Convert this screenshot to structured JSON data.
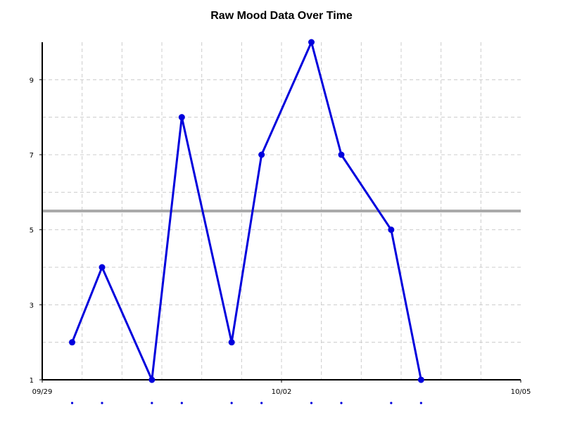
{
  "chart_data": {
    "type": "line",
    "title": "Raw Mood Data Over Time",
    "xlabel": "",
    "ylabel": "",
    "x_axis": {
      "type": "date",
      "range": [
        "09/29 00:00",
        "10/05 00:00"
      ],
      "tick_labels": [
        "09/29",
        "10/02",
        "10/05"
      ]
    },
    "y_axis": {
      "range": [
        1,
        10
      ],
      "tick_labels": [
        "1",
        "3",
        "5",
        "7",
        "9"
      ]
    },
    "grid": true,
    "legend": "none",
    "series": [
      {
        "color": "#0000dd",
        "points": [
          {
            "x": "09/29 09:00",
            "y": 2
          },
          {
            "x": "09/29 18:00",
            "y": 4
          },
          {
            "x": "09/30 09:00",
            "y": 1
          },
          {
            "x": "09/30 18:00",
            "y": 8
          },
          {
            "x": "10/01 09:00",
            "y": 2
          },
          {
            "x": "10/01 18:00",
            "y": 7
          },
          {
            "x": "10/02 09:00",
            "y": 10
          },
          {
            "x": "10/02 18:00",
            "y": 7
          },
          {
            "x": "10/03 09:00",
            "y": 5
          },
          {
            "x": "10/03 18:00",
            "y": 1
          }
        ]
      }
    ],
    "reference_line": {
      "y": 5.5,
      "color": "#aaaaaa"
    }
  }
}
